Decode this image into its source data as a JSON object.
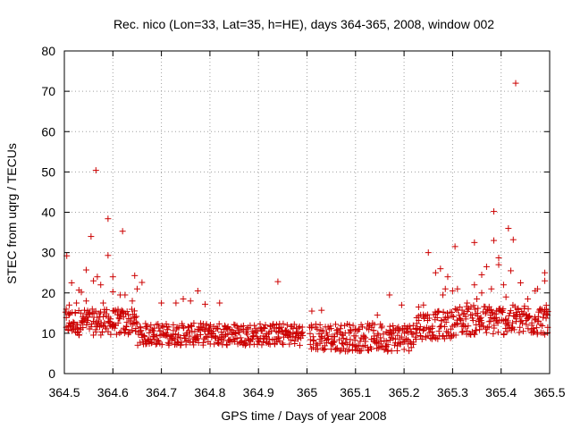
{
  "chart_data": {
    "type": "scatter",
    "title": "Rec. nico (Lon=33, Lat=35, h=HE), days 364-365, 2008, window 002",
    "xlabel": "GPS time / Days of year 2008",
    "ylabel": "STEC from uqrg / TECUs",
    "xlim": [
      364.5,
      365.5
    ],
    "ylim": [
      0,
      80
    ],
    "xticks": [
      364.5,
      364.6,
      364.7,
      364.8,
      364.9,
      365,
      365.1,
      365.2,
      365.3,
      365.4,
      365.5
    ],
    "xtick_labels": [
      "364.5",
      "364.6",
      "364.7",
      "364.8",
      "364.9",
      "365",
      "365.1",
      "365.2",
      "365.3",
      "365.4",
      "365.5"
    ],
    "yticks": [
      0,
      10,
      20,
      30,
      40,
      50,
      60,
      70,
      80
    ],
    "ytick_labels": [
      "0",
      "10",
      "20",
      "30",
      "40",
      "50",
      "60",
      "70",
      "80"
    ],
    "grid": true,
    "marker": "+",
    "color": "#cc0000",
    "series": [
      {
        "name": "STEC",
        "points": [
          [
            364.505,
            29.2
          ],
          [
            364.515,
            22.5
          ],
          [
            364.53,
            20.7
          ],
          [
            364.535,
            20.2
          ],
          [
            364.545,
            25.7
          ],
          [
            364.555,
            34.0
          ],
          [
            364.565,
            50.4
          ],
          [
            364.568,
            24.0
          ],
          [
            364.575,
            22.0
          ],
          [
            364.59,
            38.4
          ],
          [
            364.59,
            29.3
          ],
          [
            364.6,
            24.0
          ],
          [
            364.62,
            35.3
          ],
          [
            364.645,
            24.3
          ],
          [
            364.66,
            22.6
          ],
          [
            364.545,
            18.0
          ],
          [
            364.56,
            23.0
          ],
          [
            364.58,
            17.5
          ],
          [
            364.6,
            20.3
          ],
          [
            364.615,
            19.5
          ],
          [
            364.625,
            19.5
          ],
          [
            364.65,
            21.0
          ],
          [
            364.64,
            18.0
          ],
          [
            364.51,
            17.0
          ],
          [
            364.525,
            17.5
          ],
          [
            364.775,
            20.5
          ],
          [
            364.82,
            17.5
          ],
          [
            364.745,
            18.5
          ],
          [
            364.7,
            17.5
          ],
          [
            364.94,
            22.8
          ],
          [
            364.73,
            17.5
          ],
          [
            364.76,
            18.0
          ],
          [
            364.79,
            17.2
          ],
          [
            365.01,
            15.5
          ],
          [
            365.03,
            15.7
          ],
          [
            365.17,
            19.5
          ],
          [
            365.145,
            14.5
          ],
          [
            365.195,
            17.0
          ],
          [
            365.25,
            30.0
          ],
          [
            365.265,
            25.0
          ],
          [
            365.275,
            26.0
          ],
          [
            365.285,
            21.0
          ],
          [
            365.29,
            24.0
          ],
          [
            365.305,
            31.5
          ],
          [
            365.31,
            21.0
          ],
          [
            365.33,
            17.5
          ],
          [
            365.345,
            32.5
          ],
          [
            365.345,
            22.0
          ],
          [
            365.36,
            24.5
          ],
          [
            365.37,
            26.5
          ],
          [
            365.38,
            21.0
          ],
          [
            365.385,
            33.0
          ],
          [
            365.385,
            40.2
          ],
          [
            365.395,
            27.0
          ],
          [
            365.395,
            28.7
          ],
          [
            365.405,
            22.0
          ],
          [
            365.415,
            36.0
          ],
          [
            365.42,
            25.5
          ],
          [
            365.425,
            33.2
          ],
          [
            365.43,
            72.0
          ],
          [
            365.44,
            22.5
          ],
          [
            365.475,
            21.0
          ],
          [
            365.49,
            25.0
          ],
          [
            365.49,
            23.0
          ],
          [
            365.47,
            20.5
          ],
          [
            365.35,
            18.5
          ],
          [
            365.36,
            20.0
          ],
          [
            365.3,
            20.5
          ],
          [
            365.28,
            19.5
          ],
          [
            365.24,
            17.0
          ],
          [
            365.23,
            16.5
          ],
          [
            365.41,
            19.0
          ],
          [
            365.455,
            18.5
          ]
        ]
      }
    ]
  }
}
